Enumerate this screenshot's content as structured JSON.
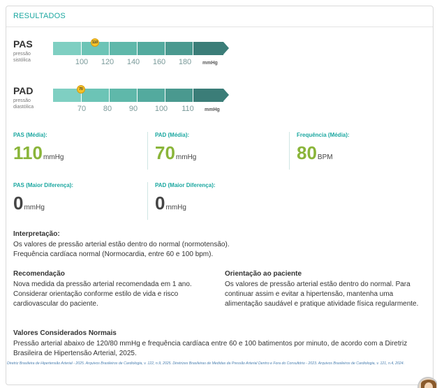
{
  "header": {
    "title": "RESULTADOS"
  },
  "gauges": [
    {
      "name": "PAS",
      "subtitle": "pressão sistólica",
      "marker_value": "110",
      "ticks": [
        "100",
        "120",
        "140",
        "160",
        "180"
      ],
      "unit": "mmHg"
    },
    {
      "name": "PAD",
      "subtitle": "pressão diastólica",
      "marker_value": "70",
      "ticks": [
        "70",
        "80",
        "90",
        "100",
        "110"
      ],
      "unit": "mmHg"
    }
  ],
  "gauge_colors": [
    "#7fcfc2",
    "#6cc4b6",
    "#5fb8aa",
    "#53aa9e",
    "#4a998f",
    "#3b7d78"
  ],
  "stats": {
    "pas_media": {
      "label": "PAS (Média):",
      "value": "110",
      "unit": "mmHg"
    },
    "pad_media": {
      "label": "PAD (Média):",
      "value": "70",
      "unit": "mmHg"
    },
    "freq_media": {
      "label": "Frequência (Média):",
      "value": "80",
      "unit": "BPM"
    },
    "pas_maior": {
      "label": "PAS (Maior Diferença):",
      "value": "0",
      "unit": "mmHg"
    },
    "pad_maior": {
      "label": "PAD (Maior Diferença):",
      "value": "0",
      "unit": "mmHg"
    }
  },
  "interpretacao": {
    "heading": "Interpretação:",
    "line1": "Os valores de pressão arterial estão dentro do normal (normotensão).",
    "line2": "Frequência cardíaca normal (Normocardia, entre 60 e 100 bpm)."
  },
  "recomendacao": {
    "heading": "Recomendação",
    "text": "Nova medida da pressão arterial recomendada em 1 ano. Considerar orientação conforme estilo de vida e risco cardiovascular do paciente."
  },
  "orientacao": {
    "heading": "Orientação ao paciente",
    "text": "Os valores de pressão arterial estão dentro do normal. Para continuar assim e evitar a hipertensão, mantenha uma alimentação saudável e pratique atividade física regularmente."
  },
  "valores_normais": {
    "heading": "Valores Considerados Normais",
    "text": "Pressão arterial abaixo de 120/80 mmHg e frequência cardíaca entre 60 e 100 batimentos por minuto, de acordo com a Diretriz Brasileira de Hipertensão Arterial, 2025."
  },
  "references": {
    "text": "Diretriz Brasileira de Hipertensão Arterial - 2025. Arquivos Brasileiros de Cardiologia, v. 122, n.9, 2025. Diretrizes Brasileiras de Medidas da Pressão Arterial Dentro e Fora do Consultório - 2023. Arquivos Brasileiros de Cardiologia, v. 121, n.4, 2024."
  }
}
